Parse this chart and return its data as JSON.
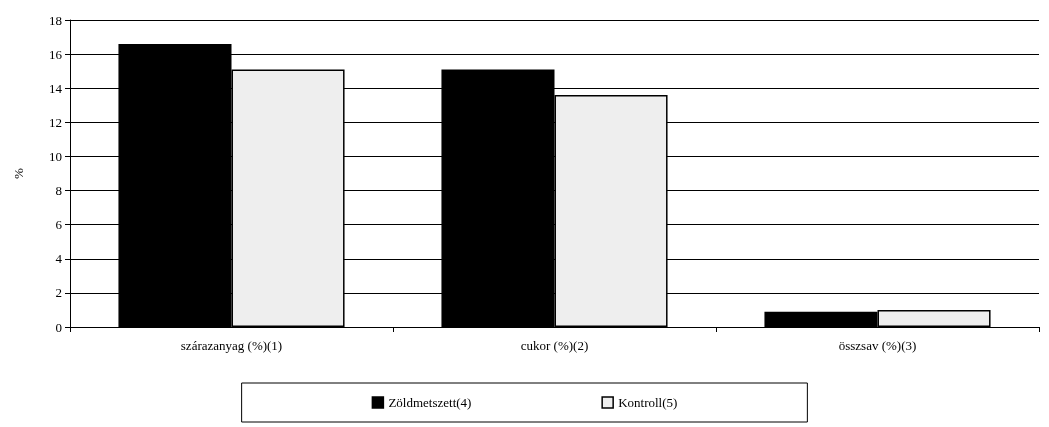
{
  "chart_data": {
    "type": "bar",
    "ylabel": "%",
    "categories": [
      "szárazanyag (%)(1)",
      "cukor (%)(2)",
      "összsav (%)(3)"
    ],
    "series": [
      {
        "name": "Zöldmetszett(4)",
        "color": "#000000",
        "values": [
          16.6,
          15.1,
          0.9
        ]
      },
      {
        "name": "Kontroll(5)",
        "color": "#eeeeee",
        "values": [
          15.1,
          13.6,
          1.0
        ]
      }
    ],
    "ylim": [
      0,
      18
    ],
    "yticks": [
      0,
      2,
      4,
      6,
      8,
      10,
      12,
      14,
      16,
      18
    ],
    "grid": "y",
    "legend": "bottom"
  }
}
